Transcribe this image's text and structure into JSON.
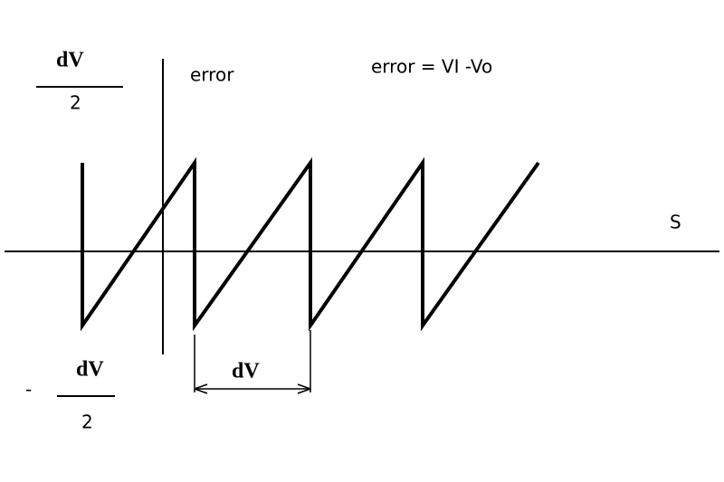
{
  "top_fraction": {
    "numerator": "dV",
    "denominator": "2"
  },
  "bottom_fraction": {
    "sign": "-",
    "numerator": "dV",
    "denominator": "2"
  },
  "y_axis_label": "error",
  "formula": "error = VI -Vo",
  "x_axis_label": "S",
  "period_label": "dV"
}
